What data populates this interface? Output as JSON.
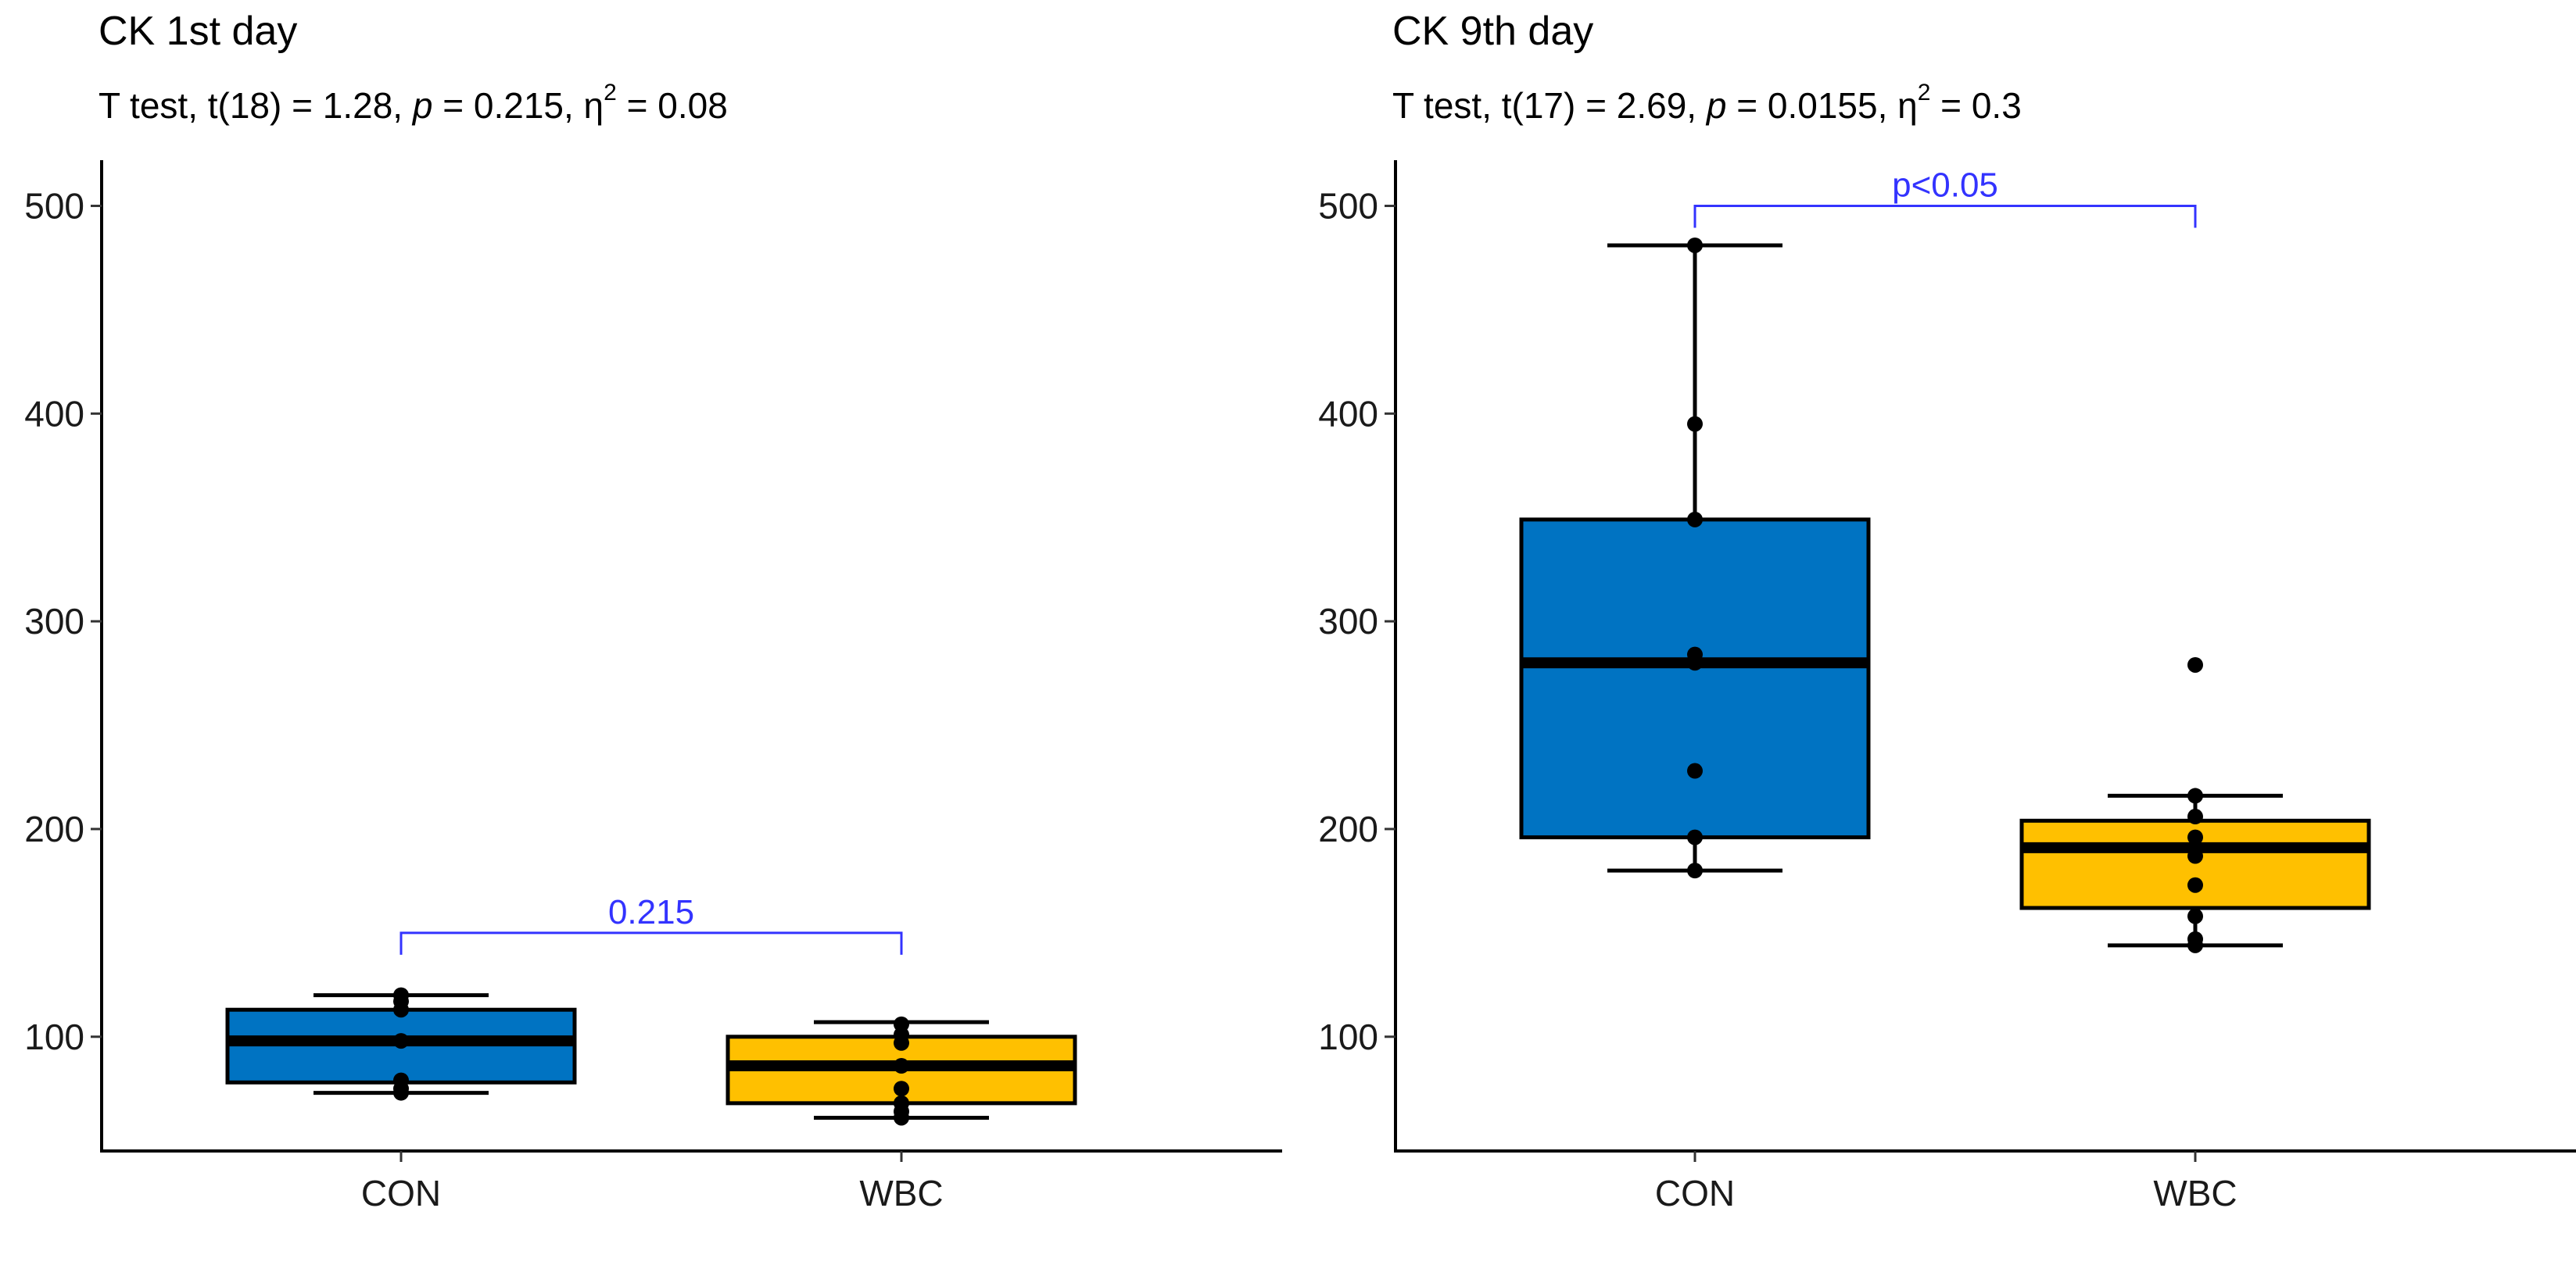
{
  "chart_data": [
    {
      "type": "boxplot",
      "title": "CK 1st day",
      "subtitle": {
        "prefix": "T test, t(18) = 1.28, ",
        "p_symbol": "p",
        "p_part": " = 0.215, η",
        "sup": "2",
        "suffix": " = 0.08"
      },
      "categories": [
        "CON",
        "WBC"
      ],
      "ylim": [
        45,
        522
      ],
      "yticks": [
        100,
        200,
        300,
        400,
        500
      ],
      "boxes": [
        {
          "category": "CON",
          "fill": "#0073C2",
          "whisker_low": 73,
          "q1": 78,
          "median": 98,
          "q3": 113,
          "whisker_high": 120,
          "points": [
            73,
            75,
            79,
            98,
            113,
            117,
            120
          ]
        },
        {
          "category": "WBC",
          "fill": "#FFC000",
          "whisker_low": 61,
          "q1": 68,
          "median": 86,
          "q3": 100,
          "whisker_high": 107,
          "points": [
            61,
            64,
            68,
            75,
            86,
            97,
            101,
            106
          ]
        }
      ],
      "comparison": {
        "from": "CON",
        "to": "WBC",
        "y": 150,
        "label": "0.215",
        "color": "#3333ff"
      }
    },
    {
      "type": "boxplot",
      "title": "CK 9th day",
      "subtitle": {
        "prefix": "T test, t(17) = 2.69, ",
        "p_symbol": "p",
        "p_part": " = 0.0155, η",
        "sup": "2",
        "suffix": " = 0.3"
      },
      "categories": [
        "CON",
        "WBC"
      ],
      "ylim": [
        45,
        522
      ],
      "yticks": [
        100,
        200,
        300,
        400,
        500
      ],
      "boxes": [
        {
          "category": "CON",
          "fill": "#0073C2",
          "whisker_low": 180,
          "q1": 196,
          "median": 280,
          "q3": 349,
          "whisker_high": 481,
          "points": [
            180,
            196,
            228,
            280,
            284,
            349,
            395,
            481
          ]
        },
        {
          "category": "WBC",
          "fill": "#FFC000",
          "whisker_low": 144,
          "q1": 162,
          "median": 191,
          "q3": 204,
          "whisker_high": 216,
          "points": [
            144,
            147,
            158,
            173,
            187,
            196,
            206,
            216,
            279
          ]
        }
      ],
      "comparison": {
        "from": "CON",
        "to": "WBC",
        "y": 500,
        "label": "p<0.05",
        "color": "#3333ff"
      }
    }
  ]
}
